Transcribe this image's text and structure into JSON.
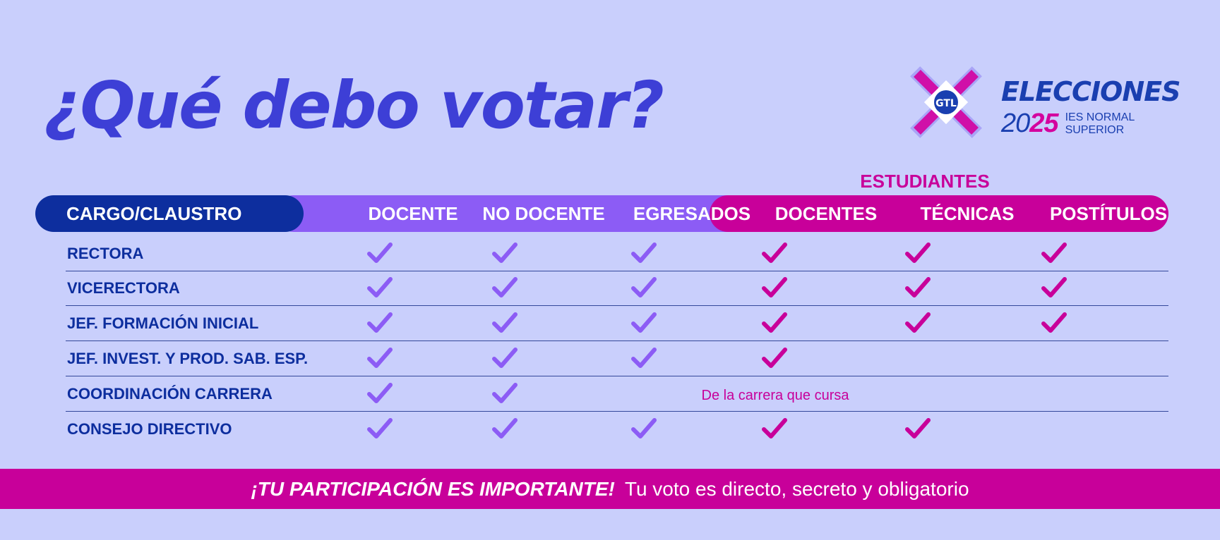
{
  "title": "¿Qué debo votar?",
  "logo": {
    "elecciones": "ELECCIONES",
    "year_part1": "20",
    "year_part2": "25",
    "institution_line1": "IES NORMAL",
    "institution_line2": "SUPERIOR",
    "badge": "GTL"
  },
  "group_label": "ESTUDIANTES",
  "columns": [
    "CARGO/CLAUSTRO",
    "DOCENTE",
    "NO DOCENTE",
    "EGRESADOS",
    "DOCENTES",
    "TÉCNICAS",
    "POSTÍTULOS"
  ],
  "rows": [
    {
      "label": "RECTORA",
      "checks": [
        true,
        true,
        true,
        true,
        true,
        true
      ]
    },
    {
      "label": "VICERECTORA",
      "checks": [
        true,
        true,
        true,
        true,
        true,
        true
      ]
    },
    {
      "label": "JEF. FORMACIÓN INICIAL",
      "checks": [
        true,
        true,
        true,
        true,
        true,
        true
      ]
    },
    {
      "label": "JEF. INVEST. Y PROD. SAB. ESP.",
      "checks": [
        true,
        true,
        true,
        true,
        false,
        false
      ]
    },
    {
      "label": "COORDINACIÓN CARRERA",
      "checks": [
        true,
        true,
        false,
        false,
        false,
        false
      ],
      "note": "De la carrera que cursa"
    },
    {
      "label": "CONSEJO DIRECTIVO",
      "checks": [
        true,
        true,
        true,
        true,
        true,
        false
      ]
    }
  ],
  "footer": {
    "bold_text": "¡TU PARTICIPACIÓN ES IMPORTANTE!",
    "normal_text": "Tu voto es directo, secreto y obligatorio"
  },
  "colors": {
    "background": "#c9cffc",
    "title": "#3d3fd6",
    "navy": "#0d2e9e",
    "purple": "#8c5cf5",
    "pink": "#c8009a",
    "check_purple": "#8c5cf5",
    "check_pink": "#c8009a"
  },
  "icons": {
    "check": "check-icon"
  }
}
